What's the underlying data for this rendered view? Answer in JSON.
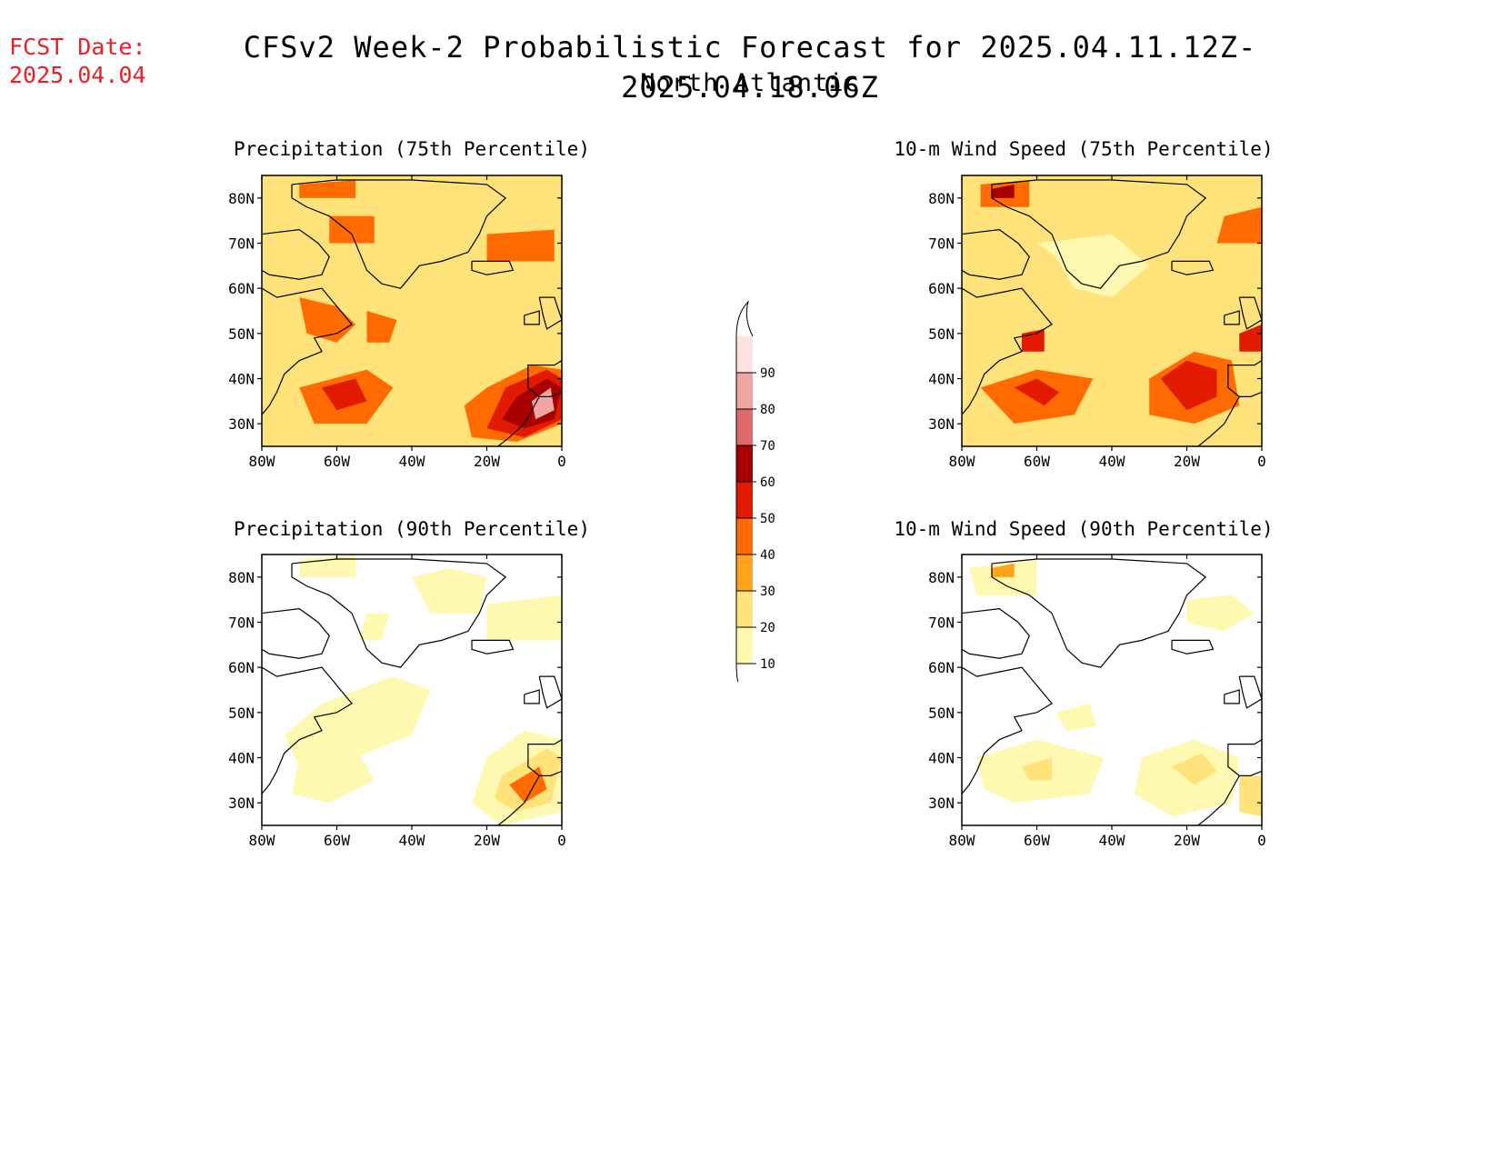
{
  "header": {
    "fcst_label": "FCST Date:",
    "fcst_date": "2025.04.04",
    "title": "CFSv2 Week-2 Probabilistic Forecast for 2025.04.11.12Z-2025.04.18.06Z",
    "region": "North Atlantic"
  },
  "panels": [
    {
      "id": "precip75",
      "title": "Precipitation (75th Percentile)"
    },
    {
      "id": "wind75",
      "title": "10-m Wind Speed (75th Percentile)"
    },
    {
      "id": "precip90",
      "title": "Precipitation (90th Percentile)"
    },
    {
      "id": "wind90",
      "title": "10-m Wind Speed (90th Percentile)"
    }
  ],
  "axes": {
    "lat_labels": [
      "80N",
      "70N",
      "60N",
      "50N",
      "40N",
      "30N"
    ],
    "lon_labels": [
      "80W",
      "60W",
      "40W",
      "20W",
      "0"
    ]
  },
  "colorbar": {
    "levels": [
      "10",
      "20",
      "30",
      "40",
      "50",
      "60",
      "70",
      "80",
      "90"
    ],
    "colors": [
      "#fff8b0",
      "#ffe37a",
      "#ffa31a",
      "#ff6b00",
      "#e21a00",
      "#a80000",
      "#e06a6a",
      "#f0a5a5",
      "#fde2e2"
    ]
  }
}
